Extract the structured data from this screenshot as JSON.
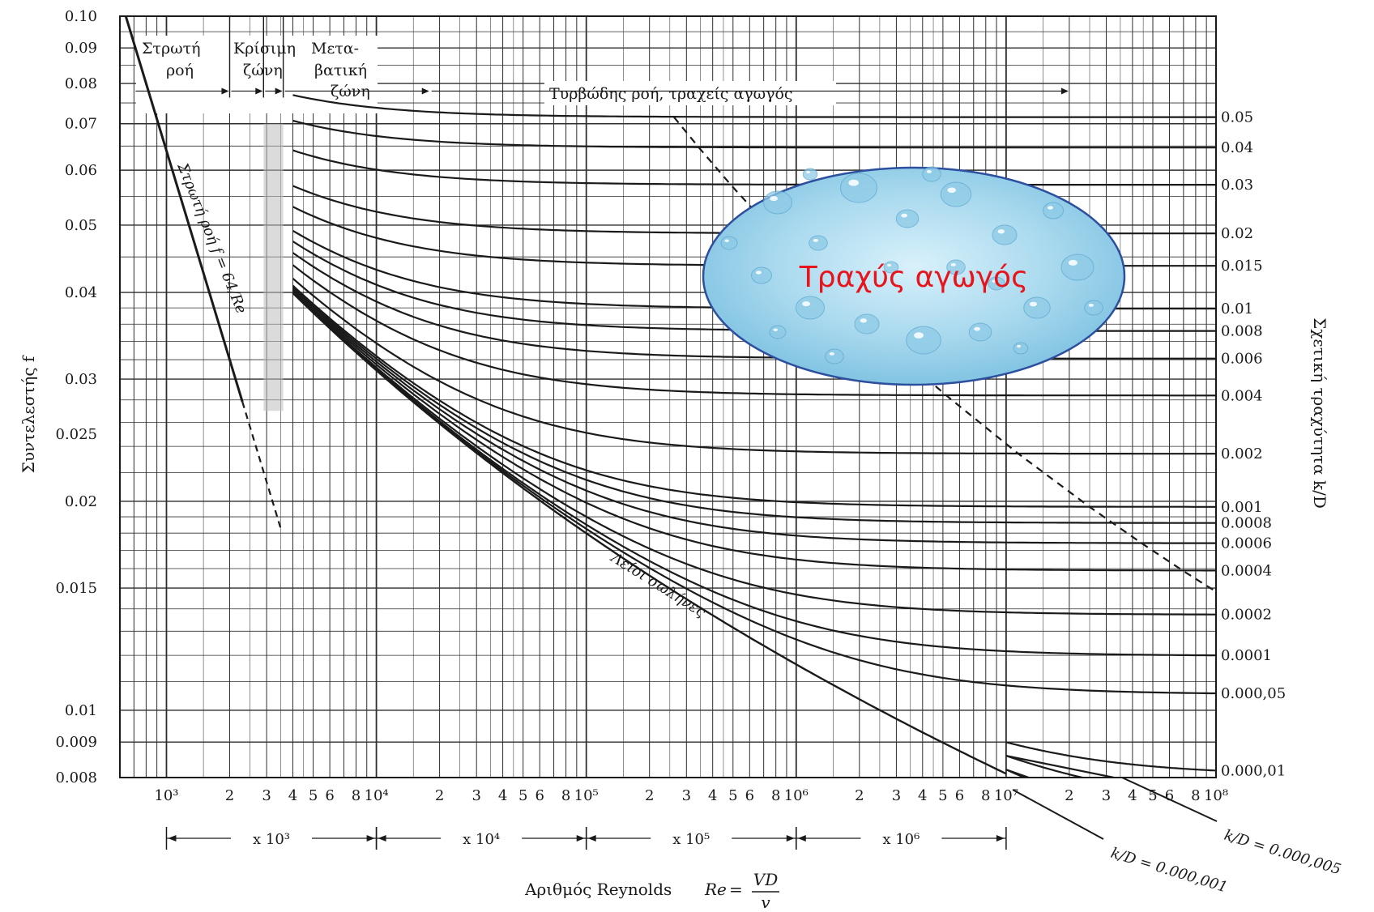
{
  "chart_data": {
    "type": "line",
    "title": "",
    "xlabel": "Αριθμός Reynolds Re = VD/ν",
    "xlabel_prefix": "Αριθμός Reynolds ",
    "xlabel_re": "Re",
    "xlabel_eq": " = ",
    "xlabel_num": "VD",
    "xlabel_den": "v",
    "ylabel": "Συντελεστής f",
    "y2label": "Σχετική τραχύτητα k/D",
    "x_scale": "log",
    "y_scale": "log",
    "xlim": [
      600,
      100000000
    ],
    "ylim": [
      0.008,
      0.1
    ],
    "grid": true,
    "y_ticks": [
      0.1,
      0.09,
      0.08,
      0.07,
      0.06,
      0.05,
      0.04,
      0.03,
      0.025,
      0.02,
      0.015,
      0.01,
      0.009,
      0.008
    ],
    "y_tick_labels": [
      "0.10",
      "0.09",
      "0.08",
      "0.07",
      "0.06",
      "0.05",
      "0.04",
      "0.03",
      "0.025",
      "0.02",
      "0.015",
      "0.01",
      "0.009",
      "0.008"
    ],
    "x_tick_labels": [
      {
        "v": 1000,
        "t": "10³"
      },
      {
        "v": 2000,
        "t": "2"
      },
      {
        "v": 3000,
        "t": "3"
      },
      {
        "v": 4000,
        "t": "4"
      },
      {
        "v": 5000,
        "t": "5"
      },
      {
        "v": 6000,
        "t": "6"
      },
      {
        "v": 8000,
        "t": "8"
      },
      {
        "v": 10000,
        "t": "10⁴"
      },
      {
        "v": 20000,
        "t": "2"
      },
      {
        "v": 30000,
        "t": "3"
      },
      {
        "v": 40000,
        "t": "4"
      },
      {
        "v": 50000,
        "t": "5"
      },
      {
        "v": 60000,
        "t": "6"
      },
      {
        "v": 80000,
        "t": "8"
      },
      {
        "v": 100000,
        "t": "10⁵"
      },
      {
        "v": 200000,
        "t": "2"
      },
      {
        "v": 300000,
        "t": "3"
      },
      {
        "v": 400000,
        "t": "4"
      },
      {
        "v": 500000,
        "t": "5"
      },
      {
        "v": 600000,
        "t": "6"
      },
      {
        "v": 800000,
        "t": "8"
      },
      {
        "v": 1000000,
        "t": "10⁶"
      },
      {
        "v": 2000000,
        "t": "2"
      },
      {
        "v": 3000000,
        "t": "3"
      },
      {
        "v": 4000000,
        "t": "4"
      },
      {
        "v": 5000000,
        "t": "5"
      },
      {
        "v": 6000000,
        "t": "6"
      },
      {
        "v": 8000000,
        "t": "8"
      },
      {
        "v": 10000000,
        "t": "10⁷"
      },
      {
        "v": 20000000,
        "t": "2"
      },
      {
        "v": 30000000,
        "t": "3"
      },
      {
        "v": 40000000,
        "t": "4"
      },
      {
        "v": 50000000,
        "t": "5"
      },
      {
        "v": 60000000,
        "t": "6"
      },
      {
        "v": 80000000,
        "t": "8"
      },
      {
        "v": 100000000,
        "t": "10⁸"
      }
    ],
    "decade_ranges": [
      {
        "from": 1000,
        "to": 10000,
        "label": "x 10³"
      },
      {
        "from": 10000,
        "to": 100000,
        "label": "x 10⁴"
      },
      {
        "from": 100000,
        "to": 1000000,
        "label": "x 10⁵"
      },
      {
        "from": 1000000,
        "to": 10000000,
        "label": "x 10⁶"
      }
    ],
    "series": [
      {
        "name": "0.05",
        "k_over_D": 0.05,
        "label": "0.05"
      },
      {
        "name": "0.04",
        "k_over_D": 0.04,
        "label": "0.04"
      },
      {
        "name": "0.03",
        "k_over_D": 0.03,
        "label": "0.03"
      },
      {
        "name": "0.02",
        "k_over_D": 0.02,
        "label": "0.02"
      },
      {
        "name": "0.015",
        "k_over_D": 0.015,
        "label": "0.015"
      },
      {
        "name": "0.01",
        "k_over_D": 0.01,
        "label": "0.01"
      },
      {
        "name": "0.008",
        "k_over_D": 0.008,
        "label": "0.008"
      },
      {
        "name": "0.006",
        "k_over_D": 0.006,
        "label": "0.006"
      },
      {
        "name": "0.004",
        "k_over_D": 0.004,
        "label": "0.004"
      },
      {
        "name": "0.002",
        "k_over_D": 0.002,
        "label": "0.002"
      },
      {
        "name": "0.001",
        "k_over_D": 0.001,
        "label": "0.001"
      },
      {
        "name": "0.0008",
        "k_over_D": 0.0008,
        "label": "0.0008"
      },
      {
        "name": "0.0006",
        "k_over_D": 0.0006,
        "label": "0.0006"
      },
      {
        "name": "0.0004",
        "k_over_D": 0.0004,
        "label": "0.0004"
      },
      {
        "name": "0.0002",
        "k_over_D": 0.0002,
        "label": "0.0002"
      },
      {
        "name": "0.0001",
        "k_over_D": 0.0001,
        "label": "0.0001"
      },
      {
        "name": "0.000,05",
        "k_over_D": 5e-05,
        "label": "0.000,05"
      },
      {
        "name": "0.000,01",
        "k_over_D": 1e-05,
        "label": "0.000,01"
      },
      {
        "name": "k/D = 0.000,005",
        "k_over_D": 5e-06,
        "label": "k/D = 0.000,005"
      },
      {
        "name": "k/D = 0.000,001",
        "k_over_D": 1e-06,
        "label": "k/D = 0.000,001"
      }
    ],
    "laminar_line": {
      "formula": "f = 64/Re",
      "label": "Στρωτή ροή f = 64/Re"
    },
    "smooth_pipes_label": "Λείοι σωλήνες",
    "zones": {
      "laminar": "Στρωτή ροή",
      "laminar_l1": "Στρωτή",
      "laminar_l2": "ροή",
      "critical_l1": "Κρίσιμη",
      "critical_l2": "ζώνη",
      "transition_l1": "Μετα-",
      "transition_l2": "βατική",
      "transition_l3": "ζώνη",
      "turbulent": "Τυρβώδης ροή, τραχείς αγωγός"
    },
    "overlay_label": "Τραχύς αγωγός",
    "colors": {
      "lines": "#1a1a1a",
      "grid": "#3a3a3a",
      "overlay_fill": "#a9d9ee",
      "overlay_stroke": "#2c4f9e",
      "overlay_text": "#e8141c"
    }
  }
}
